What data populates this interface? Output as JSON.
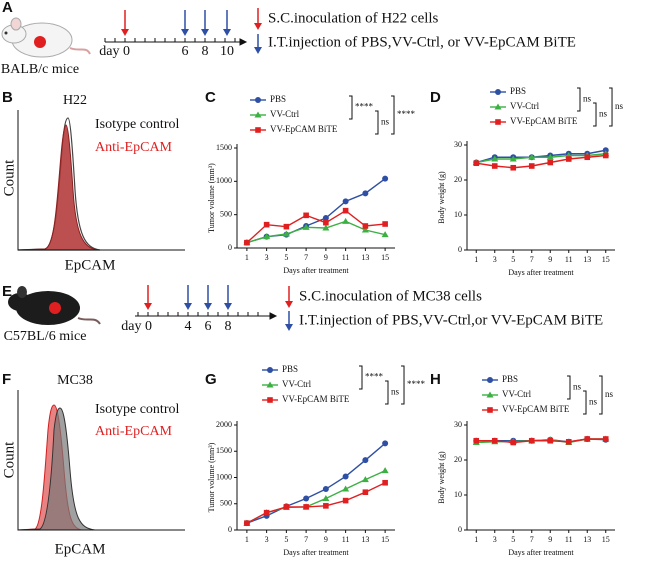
{
  "panel_labels": [
    "A",
    "B",
    "C",
    "D",
    "E",
    "F",
    "G",
    "H"
  ],
  "timeline_a": {
    "mouse": "BALB/c mice",
    "day_label": "day 0",
    "days": [
      "6",
      "8",
      "10"
    ],
    "legend": [
      "S.C.inoculation of H22 cells",
      "I.T.injection of PBS,VV-Ctrl, or VV-EpCAM BiTE"
    ]
  },
  "timeline_e": {
    "mouse": "C57BL/6 mice",
    "day_label": "day 0",
    "days": [
      "4",
      "6",
      "8"
    ],
    "legend": [
      "S.C.inoculation of MC38 cells",
      "I.T.injection of PBS,VV-Ctrl,or VV-EpCAM BiTE"
    ]
  },
  "flow_b": {
    "title": "H22",
    "legend": [
      "Isotype control",
      "Anti-EpCAM"
    ],
    "ylabel": "Count",
    "xlabel": "EpCAM"
  },
  "flow_f": {
    "title": "MC38",
    "legend": [
      "Isotype control",
      "Anti-EpCAM"
    ],
    "ylabel": "Count",
    "xlabel": "EpCAM"
  },
  "chart_data": [
    {
      "type": "line",
      "x_label": "Days after treatment",
      "y_label": "Tumor volume (mm³)",
      "x": [
        1,
        3,
        5,
        7,
        9,
        11,
        13,
        15
      ],
      "xlim": [
        0,
        16
      ],
      "xticks": [
        1,
        3,
        5,
        7,
        9,
        11,
        13,
        15
      ],
      "ylim": [
        0,
        1500
      ],
      "yticks": [
        0,
        500,
        1000,
        1500
      ],
      "series": [
        {
          "name": "PBS",
          "color": "#2e4fa3",
          "marker": "circle",
          "values": [
            80,
            170,
            200,
            330,
            450,
            700,
            820,
            1040
          ]
        },
        {
          "name": "VV-Ctrl",
          "color": "#3cb043",
          "marker": "triangle",
          "values": [
            80,
            170,
            210,
            310,
            300,
            400,
            270,
            200
          ]
        },
        {
          "name": "VV-EpCAM BiTE",
          "color": "#e02020",
          "marker": "square",
          "values": [
            80,
            350,
            320,
            490,
            380,
            560,
            330,
            360
          ]
        }
      ],
      "annotations": [
        "****",
        "ns",
        "****"
      ]
    },
    {
      "type": "line",
      "x_label": "Days after treatment",
      "y_label": "Body weight (g)",
      "x": [
        1,
        3,
        5,
        7,
        9,
        11,
        13,
        15
      ],
      "xlim": [
        0,
        16
      ],
      "xticks": [
        1,
        3,
        5,
        7,
        9,
        11,
        13,
        15
      ],
      "ylim": [
        0,
        30
      ],
      "yticks": [
        0,
        10,
        20,
        30
      ],
      "series": [
        {
          "name": "PBS",
          "color": "#2e4fa3",
          "marker": "circle",
          "values": [
            25,
            26.5,
            26.5,
            26.5,
            27,
            27.5,
            27.5,
            28.5
          ]
        },
        {
          "name": "VV-Ctrl",
          "color": "#3cb043",
          "marker": "triangle",
          "values": [
            25,
            26,
            26,
            26.5,
            26.5,
            27,
            27,
            27.5
          ]
        },
        {
          "name": "VV-EpCAM BiTE",
          "color": "#e02020",
          "marker": "square",
          "values": [
            24.8,
            24,
            23.5,
            24,
            25,
            26,
            26.5,
            27
          ]
        }
      ],
      "annotations": [
        "ns",
        "ns",
        "ns"
      ]
    },
    {
      "type": "line",
      "x_label": "Days after treatment",
      "y_label": "Tumor volume (mm³)",
      "x": [
        1,
        3,
        5,
        7,
        9,
        11,
        13,
        15
      ],
      "xlim": [
        0,
        16
      ],
      "xticks": [
        1,
        3,
        5,
        7,
        9,
        11,
        13,
        15
      ],
      "ylim": [
        0,
        2000
      ],
      "yticks": [
        0,
        500,
        1000,
        1500,
        2000
      ],
      "series": [
        {
          "name": "PBS",
          "color": "#2e4fa3",
          "marker": "circle",
          "values": [
            130,
            270,
            450,
            600,
            780,
            1020,
            1330,
            1650
          ]
        },
        {
          "name": "VV-Ctrl",
          "color": "#3cb043",
          "marker": "triangle",
          "values": [
            130,
            330,
            430,
            440,
            600,
            780,
            960,
            1130
          ]
        },
        {
          "name": "VV-EpCAM BiTE",
          "color": "#e02020",
          "marker": "square",
          "values": [
            130,
            330,
            440,
            440,
            460,
            560,
            720,
            900
          ]
        }
      ],
      "annotations": [
        "****",
        "ns",
        "****"
      ]
    },
    {
      "type": "line",
      "x_label": "Days after treatment",
      "y_label": "Body weight (g)",
      "x": [
        1,
        3,
        5,
        7,
        9,
        11,
        13,
        15
      ],
      "xlim": [
        0,
        16
      ],
      "xticks": [
        1,
        3,
        5,
        7,
        9,
        11,
        13,
        15
      ],
      "ylim": [
        0,
        30
      ],
      "yticks": [
        0,
        10,
        20,
        30
      ],
      "series": [
        {
          "name": "PBS",
          "color": "#2e4fa3",
          "marker": "circle",
          "values": [
            25.5,
            25.5,
            25.5,
            25.5,
            25.8,
            25.2,
            26,
            25.8
          ]
        },
        {
          "name": "VV-Ctrl",
          "color": "#3cb043",
          "marker": "triangle",
          "values": [
            25,
            25.2,
            25.3,
            25.5,
            25.8,
            25,
            26,
            26
          ]
        },
        {
          "name": "VV-EpCAM BiTE",
          "color": "#e02020",
          "marker": "square",
          "values": [
            25.5,
            25.5,
            25,
            25.5,
            25.5,
            25.2,
            26,
            26
          ]
        }
      ],
      "annotations": [
        "ns",
        "ns",
        "ns"
      ]
    }
  ]
}
